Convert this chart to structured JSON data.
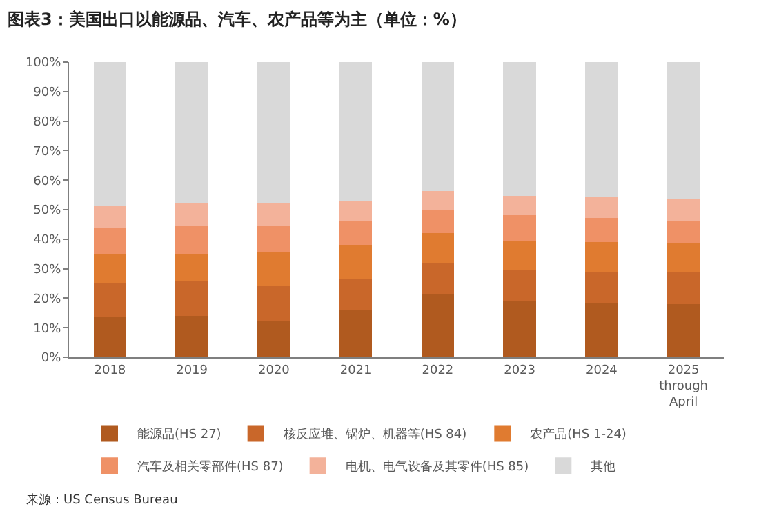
{
  "chart_data": {
    "type": "bar",
    "stacked": true,
    "title": "图表3：美国出口以能源品、汽车、农产品等为主（单位：%）",
    "categories": [
      "2018",
      "2019",
      "2020",
      "2021",
      "2022",
      "2023",
      "2024",
      "2025\nthrough\nApril"
    ],
    "series": [
      {
        "name": "能源品(HS 27)",
        "color": "#b05a1f",
        "values": [
          13.6,
          14.0,
          12.2,
          15.9,
          21.5,
          19.0,
          18.3,
          17.9
        ]
      },
      {
        "name": "核反应堆、锅炉、机器等(HS 84)",
        "color": "#c9672a",
        "values": [
          11.7,
          11.6,
          12.0,
          10.8,
          10.5,
          10.6,
          10.7,
          11.1
        ]
      },
      {
        "name": "农产品(HS 1-24)",
        "color": "#e07b30",
        "values": [
          9.8,
          9.5,
          11.4,
          11.4,
          10.1,
          9.7,
          10.0,
          9.7
        ]
      },
      {
        "name": "汽车及相关零部件(HS 87)",
        "color": "#ef9166",
        "values": [
          8.7,
          9.4,
          8.9,
          8.2,
          8.0,
          8.9,
          8.3,
          7.6
        ]
      },
      {
        "name": "电机、电气设备及其零件(HS 85)",
        "color": "#f3b29a",
        "values": [
          7.4,
          7.5,
          7.5,
          6.6,
          6.1,
          6.4,
          7.0,
          7.4
        ]
      },
      {
        "name": "其他",
        "color": "#d9d9d9",
        "values": [
          48.8,
          48.0,
          48.0,
          47.1,
          43.8,
          45.4,
          45.7,
          46.3
        ]
      }
    ],
    "ylim": [
      0,
      100
    ],
    "yticks": [
      {
        "value": 0,
        "label": "0%"
      },
      {
        "value": 10,
        "label": "10%"
      },
      {
        "value": 20,
        "label": "20%"
      },
      {
        "value": 30,
        "label": "30%"
      },
      {
        "value": 40,
        "label": "40%"
      },
      {
        "value": 50,
        "label": "50%"
      },
      {
        "value": 60,
        "label": "60%"
      },
      {
        "value": 70,
        "label": "70%"
      },
      {
        "value": 80,
        "label": "80%"
      },
      {
        "value": 90,
        "label": "90%"
      },
      {
        "value": 100,
        "label": "100%"
      }
    ],
    "grid": false,
    "legend": "bottom",
    "annotations": [
      "来源：US Census Bureau"
    ]
  }
}
